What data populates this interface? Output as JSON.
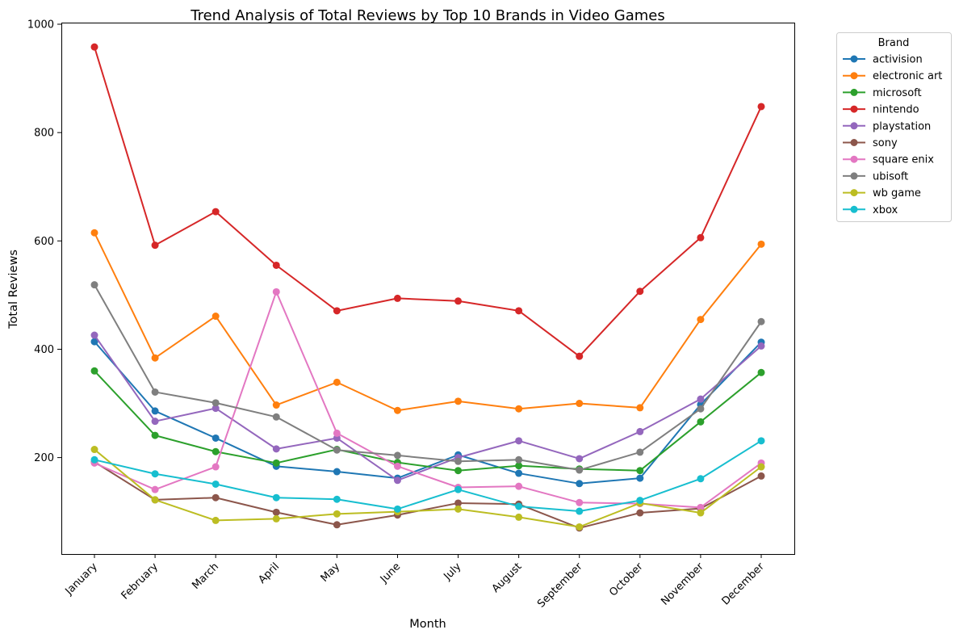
{
  "chart_data": {
    "type": "line",
    "title": "Trend Analysis of Total Reviews by Top 10 Brands in Video Games",
    "xlabel": "Month",
    "ylabel": "Total Reviews",
    "categories": [
      "January",
      "February",
      "March",
      "April",
      "May",
      "June",
      "July",
      "August",
      "September",
      "October",
      "November",
      "December"
    ],
    "ylim": [
      22,
      1003
    ],
    "yticks": [
      200,
      400,
      600,
      800,
      1000
    ],
    "grid": false,
    "legend": {
      "title": "Brand",
      "placement": "outside-top-right"
    },
    "series": [
      {
        "name": "activision",
        "color": "#1f77b4",
        "values": [
          414,
          286,
          236,
          184,
          174,
          162,
          205,
          171,
          152,
          162,
          298,
          413
        ]
      },
      {
        "name": "electronic art",
        "color": "#ff7f0e",
        "values": [
          615,
          384,
          461,
          297,
          339,
          287,
          304,
          290,
          300,
          292,
          455,
          594
        ]
      },
      {
        "name": "microsoft",
        "color": "#2ca02c",
        "values": [
          360,
          241,
          211,
          190,
          215,
          191,
          176,
          185,
          179,
          176,
          266,
          357
        ]
      },
      {
        "name": "nintendo",
        "color": "#d62728",
        "values": [
          958,
          592,
          654,
          555,
          471,
          494,
          489,
          471,
          387,
          507,
          606,
          848
        ]
      },
      {
        "name": "playstation",
        "color": "#9467bd",
        "values": [
          426,
          267,
          291,
          216,
          236,
          158,
          200,
          231,
          198,
          248,
          308,
          406
        ]
      },
      {
        "name": "sony",
        "color": "#8c564b",
        "values": [
          192,
          122,
          126,
          99,
          76,
          94,
          116,
          114,
          70,
          98,
          106,
          166
        ]
      },
      {
        "name": "square enix",
        "color": "#e377c2",
        "values": [
          190,
          141,
          183,
          506,
          245,
          184,
          145,
          147,
          117,
          115,
          108,
          190
        ]
      },
      {
        "name": "ubisoft",
        "color": "#7f7f7f",
        "values": [
          519,
          321,
          301,
          275,
          214,
          204,
          193,
          196,
          177,
          210,
          290,
          451
        ]
      },
      {
        "name": "wb game",
        "color": "#bcbd22",
        "values": [
          215,
          122,
          84,
          87,
          96,
          100,
          105,
          90,
          72,
          116,
          98,
          183
        ]
      },
      {
        "name": "xbox",
        "color": "#17becf",
        "values": [
          196,
          170,
          151,
          126,
          123,
          105,
          141,
          110,
          101,
          121,
          161,
          231
        ]
      }
    ]
  }
}
